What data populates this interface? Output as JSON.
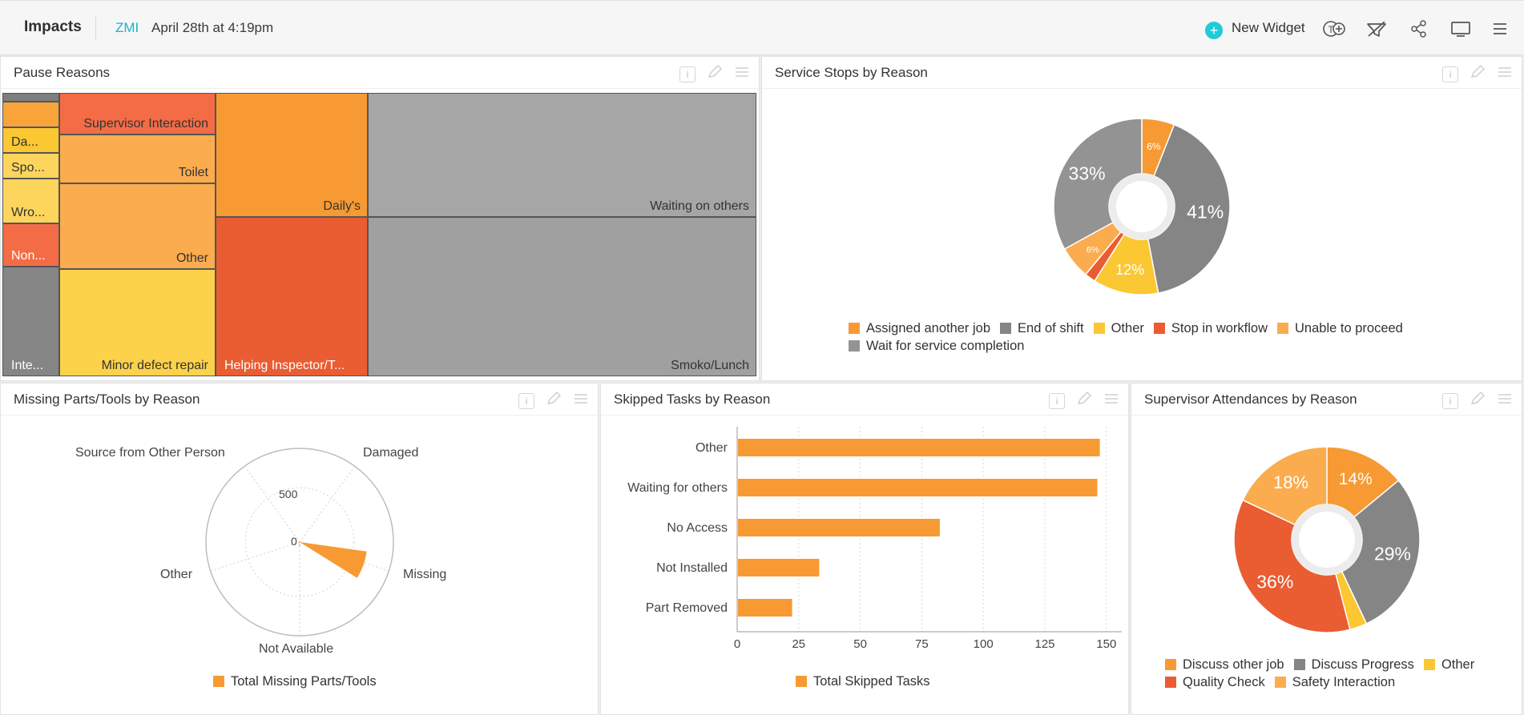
{
  "header": {
    "title": "Impacts",
    "org": "ZMI",
    "date": "April 28th at 4:19pm",
    "new_widget": "New Widget"
  },
  "icons": {
    "new_widget": "plus-circle-icon",
    "text_add": "text-add-icon",
    "filter": "filter-icon",
    "share": "share-icon",
    "present": "monitor-icon",
    "menu": "hamburger-menu-icon"
  },
  "colors": {
    "accent": "#1ab3c8",
    "orange": "#f79a33",
    "grey": "#858585",
    "yellow": "#fbc732",
    "red_orange": "#ea5c32",
    "light_orange": "#fbac4e",
    "treemap_grey": "#a6a6a6"
  },
  "panels": {
    "pause": {
      "title": "Pause Reasons",
      "cells": {
        "top_small": "",
        "da": "Da...",
        "spo": "Spo...",
        "wro": "Wro...",
        "non": "Non...",
        "inte": "Inte...",
        "supervisor": "Supervisor Interaction",
        "toilet": "Toilet",
        "other": "Other",
        "minor": "Minor defect repair",
        "dailys": "Daily's",
        "helping": "Helping Inspector/T...",
        "waiting": "Waiting on others",
        "smoko": "Smoko/Lunch"
      }
    },
    "service": {
      "title": "Service Stops by Reason",
      "labels": {
        "s1": "6%",
        "s2": "41%",
        "s3": "12%",
        "s4": "6%",
        "s5": "33%"
      },
      "legend": [
        {
          "label": "Assigned another job",
          "color": "#f79a33"
        },
        {
          "label": "End of shift",
          "color": "#858585"
        },
        {
          "label": "Other",
          "color": "#fbc732"
        },
        {
          "label": "Stop in workflow",
          "color": "#ea5c32"
        },
        {
          "label": "Unable to proceed",
          "color": "#fbac4e"
        },
        {
          "label": "Wait for service completion",
          "color": "#939393"
        }
      ]
    },
    "missing": {
      "title": "Missing Parts/Tools by Reason",
      "axes": {
        "source": "Source from Other Person",
        "damaged": "Damaged",
        "other": "Other",
        "missing": "Missing",
        "not_available": "Not Available"
      },
      "ticks": {
        "t0": "0",
        "t500": "500"
      },
      "legend": "Total Missing Parts/Tools"
    },
    "skipped": {
      "title": "Skipped Tasks by Reason",
      "legend": "Total Skipped Tasks"
    },
    "supervisor": {
      "title": "Supervisor Attendances by Reason",
      "labels": {
        "a": "14%",
        "b": "29%",
        "c": "36%",
        "d": "18%"
      },
      "legend": [
        {
          "label": "Discuss other job",
          "color": "#f79a33"
        },
        {
          "label": "Discuss Progress",
          "color": "#858585"
        },
        {
          "label": "Other",
          "color": "#fbc732"
        },
        {
          "label": "Quality Check",
          "color": "#ea5c32"
        },
        {
          "label": "Safety Interaction",
          "color": "#fbac4e"
        }
      ]
    }
  },
  "chart_data": [
    {
      "type": "pie",
      "title": "Service Stops by Reason",
      "series": [
        {
          "name": "Assigned another job",
          "value": 6
        },
        {
          "name": "End of shift",
          "value": 41
        },
        {
          "name": "Other",
          "value": 12
        },
        {
          "name": "Stop in workflow",
          "value": 2
        },
        {
          "name": "Unable to proceed",
          "value": 6
        },
        {
          "name": "Wait for service completion",
          "value": 33
        }
      ]
    },
    {
      "type": "bar",
      "title": "Skipped Tasks by Reason",
      "categories": [
        "Other",
        "Waiting for others",
        "No Access",
        "Not Installed",
        "Part Removed"
      ],
      "series": [
        {
          "name": "Total Skipped Tasks",
          "values": [
            147,
            146,
            82,
            33,
            22
          ]
        }
      ],
      "xticks": [
        0,
        25,
        50,
        75,
        100,
        125,
        150
      ],
      "xlim": [
        0,
        150
      ]
    },
    {
      "type": "pie",
      "title": "Supervisor Attendances by Reason",
      "series": [
        {
          "name": "Discuss other job",
          "value": 14
        },
        {
          "name": "Discuss Progress",
          "value": 29
        },
        {
          "name": "Other",
          "value": 3
        },
        {
          "name": "Quality Check",
          "value": 36
        },
        {
          "name": "Safety Interaction",
          "value": 18
        }
      ]
    },
    {
      "type": "radar",
      "title": "Missing Parts/Tools by Reason",
      "categories": [
        "Damaged",
        "Missing",
        "Not Available",
        "Other",
        "Source from Other Person"
      ],
      "series": [
        {
          "name": "Total Missing Parts/Tools",
          "values": [
            0,
            650,
            40,
            0,
            0
          ]
        }
      ],
      "rticks": [
        0,
        500
      ]
    }
  ]
}
